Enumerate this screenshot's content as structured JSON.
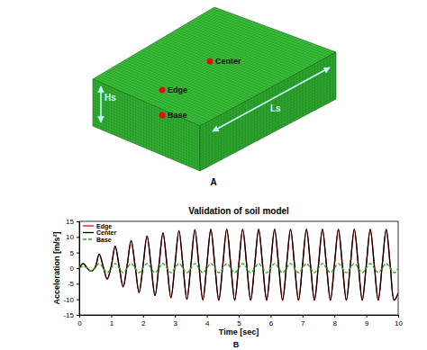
{
  "diagram": {
    "panel_label": "A",
    "points": [
      {
        "label": "Center"
      },
      {
        "label": "Edge"
      },
      {
        "label": "Base"
      }
    ],
    "dimensions": [
      "Hs",
      "Ls"
    ]
  },
  "chart_panel_label": "B",
  "chart_data": {
    "type": "line",
    "title": "Validation of soil model",
    "x_label": "Time [sec]",
    "y_label": "Acceleration [m/s²]",
    "x": [
      0,
      0.125,
      0.25,
      0.375,
      0.5,
      0.625,
      0.75,
      0.875,
      1,
      1.125,
      1.25,
      1.375,
      1.5,
      1.625,
      1.75,
      1.875,
      2,
      2.125,
      2.25,
      2.375,
      2.5,
      2.625,
      2.75,
      2.875,
      3,
      3.125,
      3.25,
      3.375,
      3.5,
      3.625,
      3.75,
      3.875,
      4,
      4.125,
      4.25,
      4.375,
      4.5,
      4.625,
      4.75,
      4.875,
      5,
      5.125,
      5.25,
      5.375,
      5.5,
      5.625,
      5.75,
      5.875,
      6,
      6.125,
      6.25,
      6.375,
      6.5,
      6.625,
      6.75,
      6.875,
      7,
      7.125,
      7.25,
      7.375,
      7.5,
      7.625,
      7.75,
      7.875,
      8,
      8.125,
      8.25,
      8.375,
      8.5,
      8.625,
      8.75,
      8.875,
      9,
      9.125,
      9.25,
      9.375,
      9.5,
      9.625,
      9.75,
      9.875,
      10
    ],
    "series": [
      {
        "name": "Edge",
        "color": "#ff0000",
        "line_style": "solid",
        "values": [
          0,
          1.5,
          0,
          -1,
          0.3,
          4.5,
          0.5,
          -3.5,
          0.5,
          7,
          0.6,
          -6,
          0.8,
          8.8,
          0.8,
          -7.8,
          0.9,
          10.3,
          0.9,
          -8.8,
          1,
          11.3,
          1,
          -9.5,
          1,
          12,
          1,
          -10,
          1,
          12.3,
          1,
          -10.2,
          1,
          12.4,
          1,
          -10.3,
          1,
          12.5,
          1,
          -10.3,
          1,
          12.5,
          1,
          -10.3,
          1,
          12.4,
          1,
          -10.3,
          1,
          12.5,
          1,
          -10.3,
          1,
          12.5,
          1,
          -10.3,
          1,
          12.5,
          1,
          -10.3,
          1,
          12.5,
          1,
          -10.3,
          1,
          12.4,
          1,
          -10.3,
          1,
          12.5,
          1,
          -10.3,
          1,
          12.5,
          1,
          -10.3,
          1,
          12.4,
          1,
          -10.3,
          -8
        ]
      },
      {
        "name": "Center",
        "color": "#000000",
        "line_style": "solid",
        "values": [
          0,
          1.5,
          0,
          -1,
          0.3,
          4.5,
          0.5,
          -3.5,
          0.5,
          7,
          0.6,
          -6,
          0.8,
          8.8,
          0.8,
          -7.8,
          0.9,
          10.3,
          0.9,
          -8.8,
          1,
          11.3,
          1,
          -9.5,
          1,
          12,
          1,
          -10,
          1,
          12.3,
          1,
          -10.2,
          1,
          12.4,
          1,
          -10.3,
          1,
          12.5,
          1,
          -10.3,
          1,
          12.5,
          1,
          -10.3,
          1,
          12.4,
          1,
          -10.3,
          1,
          12.5,
          1,
          -10.3,
          1,
          12.5,
          1,
          -10.3,
          1,
          12.5,
          1,
          -10.3,
          1,
          12.5,
          1,
          -10.3,
          1,
          12.4,
          1,
          -10.3,
          1,
          12.5,
          1,
          -10.3,
          1,
          12.5,
          1,
          -10.3,
          1,
          12.4,
          1,
          -10.3,
          -8
        ]
      },
      {
        "name": "Base",
        "color": "#22aa22",
        "line_style": "dashed",
        "values": [
          0,
          0.5,
          0,
          -1,
          0,
          1.5,
          0,
          -1.5,
          0,
          1.5,
          0,
          -1.5,
          0,
          1.5,
          0,
          -1.5,
          0,
          1.5,
          0,
          -1.5,
          0,
          1.5,
          0,
          -1.5,
          0,
          1.5,
          0,
          -1.5,
          0,
          1.5,
          0,
          -1.5,
          0,
          1.5,
          0,
          -1.5,
          0,
          1.5,
          0,
          -1.5,
          0,
          1.5,
          0,
          -1.5,
          0,
          1.5,
          0,
          -1.5,
          0,
          1.5,
          0,
          -1.5,
          0,
          1.5,
          0,
          -1.5,
          0,
          1.5,
          0,
          -1.5,
          0,
          1.5,
          0,
          -1.5,
          0,
          1.5,
          0,
          -1.5,
          0,
          1.5,
          0,
          -1.5,
          0,
          1.5,
          0,
          -1.5,
          0,
          1.5,
          0,
          -1.5,
          0
        ]
      }
    ],
    "xlim": [
      0,
      10
    ],
    "xticks": [
      0,
      1,
      2,
      3,
      4,
      5,
      6,
      7,
      8,
      9,
      10
    ],
    "ylim": [
      -15,
      15
    ],
    "yticks": [
      -15,
      -10,
      -5,
      0,
      5,
      10,
      15
    ],
    "grid": false,
    "legend": "upper left"
  }
}
